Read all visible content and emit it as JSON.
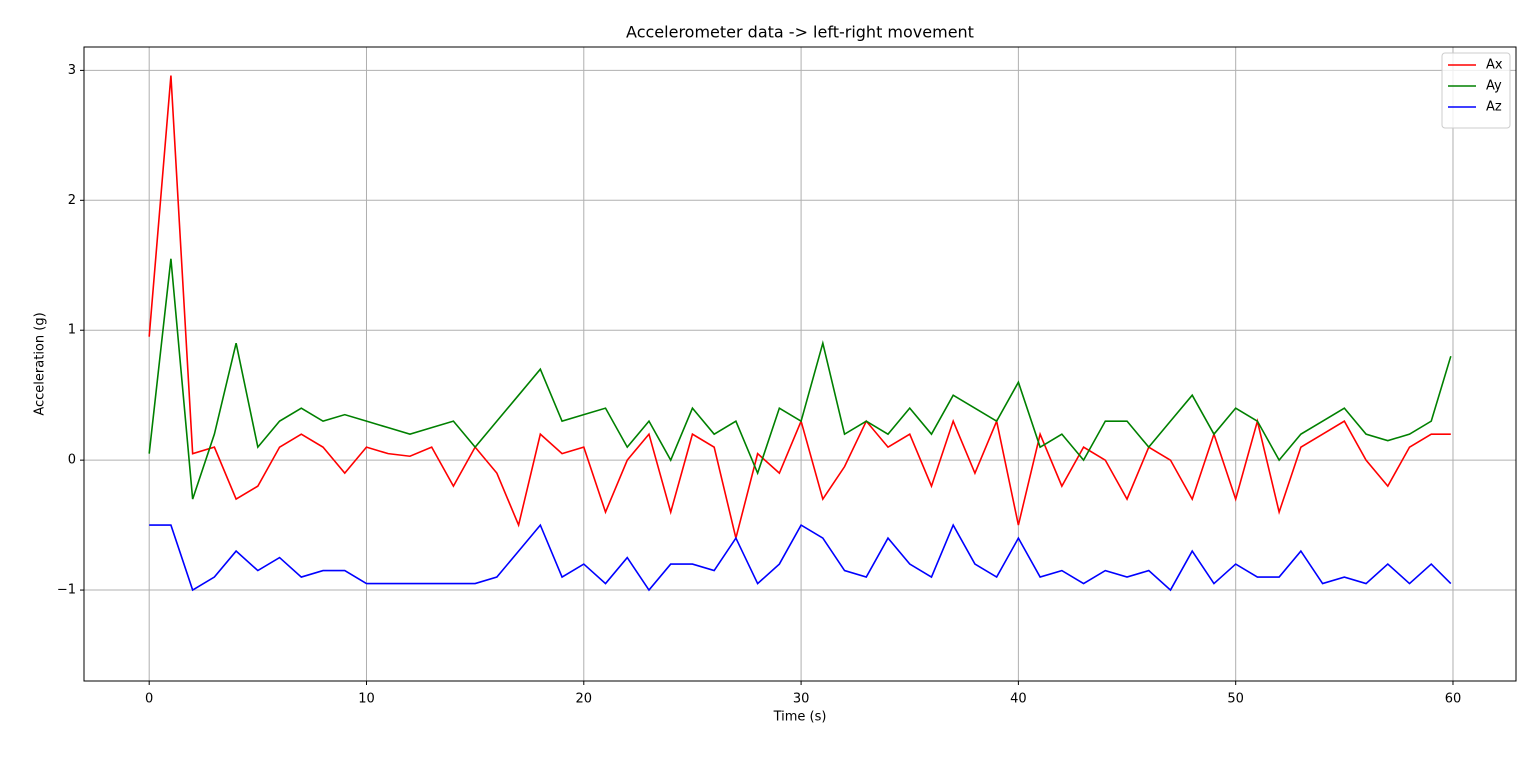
{
  "chart_data": {
    "type": "line",
    "title": "Accelerometer data -> left-right movement",
    "x_label": "Time (s)",
    "y_label": "Acceleration (g)",
    "x": [
      0,
      1,
      2,
      3,
      4,
      5,
      6,
      7,
      8,
      9,
      10,
      11,
      12,
      13,
      14,
      15,
      16,
      17,
      18,
      19,
      20,
      21,
      22,
      23,
      24,
      25,
      26,
      27,
      28,
      29,
      30,
      31,
      32,
      33,
      34,
      35,
      36,
      37,
      38,
      39,
      40,
      41,
      42,
      43,
      44,
      45,
      46,
      47,
      48,
      49,
      50,
      51,
      52,
      53,
      54,
      55,
      56,
      57,
      58,
      59,
      59.9
    ],
    "series": [
      {
        "name": "Ax",
        "color": "#ff0000",
        "values": [
          0.95,
          2.96,
          0.05,
          0.1,
          -0.3,
          -0.2,
          0.1,
          0.2,
          0.1,
          -0.1,
          0.1,
          0.05,
          0.03,
          0.1,
          -0.2,
          0.1,
          -0.1,
          -0.5,
          0.2,
          0.05,
          0.1,
          -0.4,
          0.0,
          0.2,
          -0.4,
          0.2,
          0.1,
          -0.6,
          0.05,
          -0.1,
          0.3,
          -0.3,
          -0.05,
          0.3,
          0.1,
          0.2,
          -0.2,
          0.3,
          -0.1,
          0.3,
          -0.5,
          0.2,
          -0.2,
          0.1,
          0.0,
          -0.3,
          0.1,
          0.0,
          -0.3,
          0.2,
          -0.3,
          0.3,
          -0.4,
          0.1,
          0.2,
          0.3,
          0.0,
          -0.2,
          0.1,
          0.2,
          0.2
        ]
      },
      {
        "name": "Ay",
        "color": "#008000",
        "values": [
          0.05,
          1.55,
          -0.3,
          0.2,
          0.9,
          0.1,
          0.3,
          0.4,
          0.3,
          0.35,
          0.3,
          0.25,
          0.2,
          0.25,
          0.3,
          0.1,
          0.3,
          0.5,
          0.7,
          0.3,
          0.35,
          0.4,
          0.1,
          0.3,
          0.0,
          0.4,
          0.2,
          0.3,
          -0.1,
          0.4,
          0.3,
          0.9,
          0.2,
          0.3,
          0.2,
          0.4,
          0.2,
          0.5,
          0.4,
          0.3,
          0.6,
          0.1,
          0.2,
          0.0,
          0.3,
          0.3,
          0.1,
          0.3,
          0.5,
          0.2,
          0.4,
          0.3,
          0.0,
          0.2,
          0.3,
          0.4,
          0.2,
          0.15,
          0.2,
          0.3,
          0.8
        ]
      },
      {
        "name": "Az",
        "color": "#0000ff",
        "values": [
          -0.5,
          -0.5,
          -1.0,
          -0.9,
          -0.7,
          -0.85,
          -0.75,
          -0.9,
          -0.85,
          -0.85,
          -0.95,
          -0.95,
          -0.95,
          -0.95,
          -0.95,
          -0.95,
          -0.9,
          -0.7,
          -0.5,
          -0.9,
          -0.8,
          -0.95,
          -0.75,
          -1.0,
          -0.8,
          -0.8,
          -0.85,
          -0.6,
          -0.95,
          -0.8,
          -0.5,
          -0.6,
          -0.85,
          -0.9,
          -0.6,
          -0.8,
          -0.9,
          -0.5,
          -0.8,
          -0.9,
          -0.6,
          -0.9,
          -0.85,
          -0.95,
          -0.85,
          -0.9,
          -0.85,
          -1.0,
          -0.7,
          -0.95,
          -0.8,
          -0.9,
          -0.9,
          -0.7,
          -0.95,
          -0.9,
          -0.95,
          -0.8,
          -0.95,
          -0.8,
          -0.95
        ]
      }
    ],
    "xlim": [
      -3,
      62.9
    ],
    "ylim": [
      -1.7,
      3.18
    ],
    "xticks": [
      0,
      10,
      20,
      30,
      40,
      50,
      60
    ],
    "yticks": [
      {
        "value": -1,
        "label": "−1"
      },
      0,
      1,
      2,
      3
    ],
    "grid": true,
    "legend": "upper right"
  }
}
